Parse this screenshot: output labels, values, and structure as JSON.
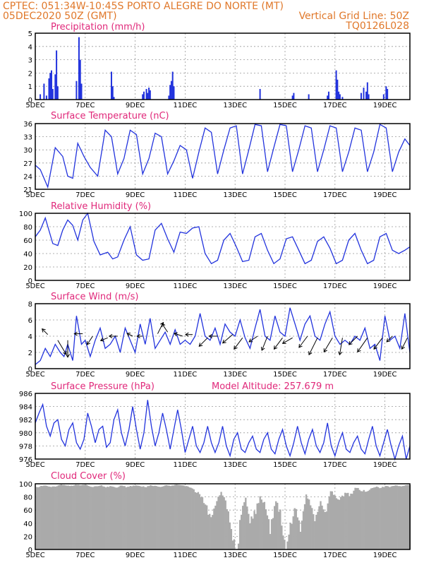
{
  "header": {
    "line1_left": "CPTEC:   051:34W-10:45S   PORTO ALEGRE DO NORTE (MT)",
    "line2_left": "05DEC2020 50Z (GMT)",
    "line2_right": "Vertical Grid Line: 50Z",
    "line3_right": "TQ0126L028"
  },
  "colors": {
    "header": "#e0782a",
    "title": "#e0287a",
    "series": "#2233dd",
    "cloud": "#aaaaaa"
  },
  "x_axis": {
    "labels": [
      "5DEC",
      "7DEC",
      "9DEC",
      "11DEC",
      "13DEC",
      "15DEC",
      "17DEC",
      "19DEC"
    ],
    "label_days": [
      5,
      7,
      9,
      11,
      13,
      15,
      17,
      19
    ],
    "range_days": [
      5,
      20
    ]
  },
  "chart_data": [
    {
      "id": "precip",
      "type": "bar",
      "title": "Precipitation (mm/h)",
      "ylim": [
        0,
        5
      ],
      "yticks": [
        0,
        1,
        2,
        3,
        4,
        5
      ],
      "x_unit": "day of December 2020",
      "x": [
        5.2,
        5.35,
        5.45,
        5.55,
        5.6,
        5.65,
        5.7,
        5.8,
        5.85,
        5.9,
        6.65,
        6.75,
        6.8,
        6.85,
        8.05,
        8.1,
        8.15,
        9.3,
        9.35,
        9.45,
        9.5,
        9.55,
        9.6,
        10.35,
        10.4,
        10.45,
        10.5,
        10.55,
        14.0,
        15.3,
        15.35,
        15.95,
        16.7,
        16.75,
        17.05,
        17.1,
        17.15,
        17.2,
        17.3,
        18.05,
        18.15,
        18.25,
        18.3,
        18.35,
        18.95,
        19.05,
        19.1
      ],
      "values": [
        0.4,
        1.2,
        0.3,
        1.6,
        2.0,
        2.2,
        0.8,
        1.9,
        3.7,
        1.0,
        1.4,
        4.7,
        3.0,
        1.2,
        2.1,
        1.0,
        0.2,
        0.4,
        0.6,
        0.8,
        0.5,
        0.9,
        0.7,
        0.3,
        1.1,
        1.4,
        2.1,
        1.0,
        0.8,
        0.3,
        0.5,
        0.4,
        0.3,
        0.6,
        2.2,
        1.5,
        0.6,
        0.4,
        0.2,
        0.5,
        0.9,
        0.6,
        1.3,
        0.4,
        0.4,
        1.0,
        0.8
      ]
    },
    {
      "id": "temp",
      "type": "line",
      "title": "Surface Temperature (nC)",
      "ylim": [
        21,
        36
      ],
      "yticks": [
        21,
        24,
        27,
        30,
        33,
        36
      ],
      "x_unit": "day of December 2020",
      "x": [
        5.0,
        5.2,
        5.5,
        5.8,
        6.1,
        6.3,
        6.5,
        6.7,
        6.95,
        7.2,
        7.5,
        7.8,
        8.05,
        8.3,
        8.55,
        8.8,
        9.05,
        9.3,
        9.55,
        9.8,
        10.05,
        10.3,
        10.55,
        10.8,
        11.05,
        11.3,
        11.55,
        11.8,
        12.05,
        12.3,
        12.55,
        12.8,
        13.05,
        13.3,
        13.55,
        13.8,
        14.05,
        14.3,
        14.55,
        14.8,
        15.05,
        15.3,
        15.55,
        15.8,
        16.05,
        16.3,
        16.55,
        16.8,
        17.05,
        17.3,
        17.55,
        17.8,
        18.05,
        18.3,
        18.55,
        18.8,
        19.05,
        19.3,
        19.55,
        19.8,
        20.0
      ],
      "values": [
        26.5,
        25.5,
        21.5,
        30.5,
        28.5,
        24.0,
        23.5,
        31.5,
        28.5,
        26.0,
        24.0,
        34.5,
        33.0,
        24.5,
        28.0,
        34.5,
        33.5,
        24.5,
        28.0,
        33.8,
        33.0,
        24.5,
        27.5,
        31.0,
        30.0,
        23.5,
        29.5,
        35.0,
        34.0,
        24.5,
        30.0,
        35.0,
        35.5,
        24.5,
        30.0,
        35.8,
        35.5,
        25.0,
        30.5,
        35.8,
        35.5,
        25.0,
        30.0,
        35.5,
        35.0,
        25.0,
        30.0,
        35.5,
        35.0,
        25.0,
        29.5,
        35.0,
        34.5,
        25.0,
        29.5,
        35.8,
        35.0,
        25.0,
        29.5,
        32.5,
        31.0
      ]
    },
    {
      "id": "rh",
      "type": "line",
      "title": "Relative Humidity (%)",
      "ylim": [
        0,
        100
      ],
      "yticks": [
        0,
        20,
        40,
        60,
        80,
        100
      ],
      "x_unit": "day of December 2020",
      "x": [
        5.0,
        5.2,
        5.4,
        5.7,
        5.9,
        6.1,
        6.3,
        6.5,
        6.7,
        6.9,
        7.1,
        7.35,
        7.6,
        7.9,
        8.1,
        8.3,
        8.55,
        8.8,
        9.05,
        9.3,
        9.55,
        9.8,
        10.05,
        10.3,
        10.55,
        10.8,
        11.05,
        11.3,
        11.55,
        11.8,
        12.05,
        12.3,
        12.55,
        12.8,
        13.05,
        13.3,
        13.55,
        13.8,
        14.05,
        14.3,
        14.55,
        14.8,
        15.05,
        15.3,
        15.55,
        15.8,
        16.05,
        16.3,
        16.55,
        16.8,
        17.05,
        17.3,
        17.55,
        17.8,
        18.05,
        18.3,
        18.55,
        18.8,
        19.05,
        19.3,
        19.55,
        19.8,
        20.0
      ],
      "values": [
        65,
        75,
        93,
        55,
        52,
        75,
        90,
        82,
        60,
        90,
        100,
        58,
        38,
        42,
        32,
        35,
        60,
        80,
        38,
        30,
        32,
        75,
        85,
        62,
        42,
        72,
        70,
        78,
        80,
        40,
        25,
        30,
        60,
        70,
        50,
        28,
        30,
        65,
        70,
        45,
        25,
        32,
        62,
        65,
        45,
        25,
        30,
        58,
        65,
        48,
        25,
        30,
        60,
        70,
        45,
        25,
        30,
        65,
        70,
        45,
        40,
        45,
        50
      ]
    },
    {
      "id": "wind",
      "type": "line",
      "title": "Surface Wind (m/s)",
      "ylim": [
        0,
        8
      ],
      "yticks": [
        0,
        2,
        4,
        6,
        8
      ],
      "x_unit": "day of December 2020",
      "x": [
        5.0,
        5.2,
        5.4,
        5.6,
        5.8,
        6.0,
        6.15,
        6.3,
        6.5,
        6.65,
        6.85,
        7.0,
        7.2,
        7.4,
        7.6,
        7.8,
        8.0,
        8.2,
        8.4,
        8.6,
        8.8,
        9.0,
        9.2,
        9.4,
        9.6,
        9.8,
        10.0,
        10.2,
        10.4,
        10.6,
        10.8,
        11.0,
        11.2,
        11.4,
        11.6,
        11.8,
        12.0,
        12.2,
        12.4,
        12.6,
        12.8,
        13.0,
        13.2,
        13.4,
        13.6,
        13.8,
        14.0,
        14.2,
        14.4,
        14.6,
        14.8,
        15.0,
        15.2,
        15.4,
        15.6,
        15.8,
        16.0,
        16.2,
        16.4,
        16.6,
        16.8,
        17.0,
        17.2,
        17.4,
        17.6,
        17.8,
        18.0,
        18.2,
        18.4,
        18.6,
        18.8,
        19.0,
        19.2,
        19.4,
        19.6,
        19.8,
        20.0
      ],
      "values": [
        0.5,
        1.0,
        2.5,
        1.5,
        3.0,
        2.0,
        1.5,
        3.0,
        1.0,
        6.5,
        3.0,
        3.5,
        1.5,
        3.5,
        5.0,
        2.5,
        3.0,
        4.0,
        2.0,
        5.0,
        3.5,
        2.0,
        5.5,
        3.0,
        6.2,
        2.5,
        3.5,
        4.5,
        3.0,
        4.8,
        3.0,
        3.5,
        3.0,
        4.0,
        6.8,
        4.0,
        3.5,
        5.0,
        3.0,
        5.5,
        4.5,
        4.0,
        6.0,
        3.8,
        2.5,
        5.0,
        7.3,
        4.0,
        3.5,
        6.5,
        4.5,
        4.0,
        7.5,
        5.5,
        3.5,
        5.5,
        6.5,
        4.0,
        3.5,
        5.5,
        7.0,
        4.0,
        3.0,
        3.5,
        3.0,
        4.0,
        3.5,
        5.0,
        2.5,
        3.0,
        1.0,
        6.5,
        3.5,
        4.0,
        2.5,
        6.8,
        2.0
      ]
    },
    {
      "id": "pressure",
      "type": "line",
      "title": "Surface Pressure (hPa)",
      "annotation": "Model Altitude: 257.679 m",
      "ylim": [
        976,
        986
      ],
      "yticks": [
        976,
        978,
        980,
        982,
        984,
        986
      ],
      "x_unit": "day of December 2020",
      "x": [
        5.0,
        5.15,
        5.3,
        5.45,
        5.6,
        5.75,
        5.9,
        6.05,
        6.2,
        6.35,
        6.5,
        6.65,
        6.8,
        6.95,
        7.1,
        7.25,
        7.4,
        7.55,
        7.7,
        7.85,
        8.0,
        8.15,
        8.3,
        8.45,
        8.6,
        8.75,
        8.9,
        9.05,
        9.2,
        9.35,
        9.5,
        9.65,
        9.8,
        9.95,
        10.1,
        10.25,
        10.4,
        10.55,
        10.7,
        10.85,
        11.0,
        11.15,
        11.3,
        11.45,
        11.6,
        11.75,
        11.9,
        12.05,
        12.2,
        12.35,
        12.5,
        12.65,
        12.8,
        12.95,
        13.1,
        13.25,
        13.4,
        13.55,
        13.7,
        13.85,
        14.0,
        14.15,
        14.3,
        14.45,
        14.6,
        14.75,
        14.9,
        15.05,
        15.2,
        15.35,
        15.5,
        15.65,
        15.8,
        15.95,
        16.1,
        16.25,
        16.4,
        16.55,
        16.7,
        16.85,
        17.0,
        17.15,
        17.3,
        17.45,
        17.6,
        17.75,
        17.9,
        18.05,
        18.2,
        18.35,
        18.5,
        18.65,
        18.8,
        18.95,
        19.1,
        19.25,
        19.4,
        19.55,
        19.7,
        19.85,
        20.0
      ],
      "values": [
        981.5,
        983.0,
        984.3,
        981.0,
        979.5,
        981.5,
        982.0,
        979.0,
        978.0,
        980.5,
        981.5,
        978.5,
        977.5,
        979.0,
        983.0,
        981.0,
        978.5,
        980.5,
        981.0,
        977.8,
        978.5,
        982.0,
        983.5,
        980.0,
        978.0,
        980.5,
        984.0,
        980.5,
        977.5,
        980.0,
        985.0,
        981.0,
        978.0,
        980.0,
        983.0,
        980.5,
        977.5,
        980.5,
        983.5,
        980.5,
        977.0,
        979.0,
        981.0,
        978.0,
        977.0,
        978.5,
        981.0,
        978.5,
        977.0,
        978.5,
        981.0,
        978.0,
        976.5,
        979.0,
        980.0,
        977.5,
        977.0,
        978.5,
        979.5,
        977.5,
        977.0,
        979.0,
        980.0,
        977.5,
        976.8,
        979.0,
        980.5,
        978.0,
        976.5,
        978.5,
        981.0,
        978.5,
        976.8,
        979.0,
        980.5,
        978.0,
        977.0,
        978.5,
        981.5,
        978.0,
        976.5,
        978.5,
        980.0,
        977.5,
        977.0,
        978.5,
        979.5,
        977.5,
        976.8,
        979.0,
        981.0,
        978.0,
        976.5,
        978.5,
        980.5,
        978.0,
        976.0,
        978.0,
        979.5,
        975.5,
        978.0
      ]
    },
    {
      "id": "cloud",
      "type": "area",
      "title": "Cloud Cover (%)",
      "ylim": [
        0,
        100
      ],
      "yticks": [
        0,
        20,
        40,
        60,
        80,
        100
      ],
      "x_unit": "day of December 2020",
      "x": [
        5.0,
        5.2,
        5.4,
        5.6,
        5.8,
        6.0,
        6.2,
        6.4,
        6.6,
        6.8,
        7.0,
        7.2,
        7.4,
        7.6,
        7.8,
        8.0,
        8.2,
        8.4,
        8.6,
        8.8,
        9.0,
        9.2,
        9.4,
        9.6,
        9.8,
        10.0,
        10.2,
        10.4,
        10.6,
        10.8,
        11.0,
        11.2,
        11.4,
        11.6,
        11.8,
        12.0,
        12.2,
        12.4,
        12.6,
        12.8,
        13.0,
        13.2,
        13.4,
        13.6,
        13.8,
        14.0,
        14.2,
        14.4,
        14.6,
        14.8,
        15.0,
        15.2,
        15.4,
        15.6,
        15.8,
        16.0,
        16.2,
        16.4,
        16.6,
        16.8,
        17.0,
        17.2,
        17.4,
        17.6,
        17.8,
        18.0,
        18.2,
        18.4,
        18.6,
        18.8,
        19.0,
        19.2,
        19.4,
        19.6,
        19.8,
        20.0
      ],
      "values": [
        95,
        97,
        98,
        96,
        97,
        99,
        98,
        97,
        99,
        98,
        99,
        96,
        97,
        98,
        96,
        97,
        95,
        98,
        96,
        97,
        98,
        97,
        96,
        98,
        97,
        96,
        98,
        97,
        99,
        98,
        97,
        95,
        90,
        85,
        70,
        55,
        75,
        90,
        80,
        40,
        5,
        60,
        80,
        50,
        65,
        85,
        70,
        40,
        80,
        60,
        15,
        50,
        70,
        40,
        85,
        75,
        55,
        80,
        65,
        90,
        85,
        80,
        90,
        85,
        95,
        92,
        90,
        94,
        96,
        95,
        97,
        96,
        98,
        97,
        98,
        99
      ]
    }
  ],
  "wind_vectors": {
    "x": [
      5.5,
      5.9,
      6.3,
      6.9,
      7.3,
      7.9,
      8.3,
      8.9,
      9.3,
      9.9,
      10.3,
      10.9,
      11.3,
      11.9,
      12.3,
      12.9,
      13.3,
      13.9,
      14.3,
      14.9,
      15.3,
      15.9,
      16.3,
      16.9,
      17.3,
      17.9,
      18.3,
      18.9,
      19.3,
      19.9
    ],
    "y": [
      4.2,
      3.5,
      3.5,
      4.3,
      4.0,
      3.8,
      4.0,
      4.0,
      4.0,
      4.3,
      4.5,
      4.0,
      4.2,
      3.8,
      4.0,
      4.2,
      3.8,
      4.0,
      4.0,
      3.8,
      3.8,
      4.0,
      3.8,
      3.8,
      3.8,
      4.0,
      3.8,
      3.8,
      4.0,
      3.8
    ],
    "u": [
      -0.2,
      0.3,
      0.0,
      -0.3,
      -0.2,
      -0.25,
      -0.3,
      -0.2,
      -0.2,
      0.2,
      -0.2,
      -0.3,
      -0.25,
      -0.3,
      -0.3,
      -0.35,
      -0.3,
      -0.3,
      -0.2,
      -0.3,
      -0.35,
      -0.3,
      -0.3,
      -0.3,
      -0.1,
      -0.3,
      -0.35,
      -0.3,
      -0.2,
      -0.2
    ],
    "v": [
      0.2,
      -0.5,
      -0.6,
      0.0,
      -0.3,
      -0.1,
      0.0,
      0.1,
      0.0,
      0.4,
      0.3,
      0.1,
      0.0,
      -0.3,
      0.0,
      -0.3,
      -0.4,
      -0.2,
      -0.5,
      -0.4,
      -0.2,
      -0.4,
      -0.6,
      -0.5,
      -0.6,
      -0.3,
      -0.5,
      -0.4,
      -0.2,
      -0.4
    ]
  }
}
